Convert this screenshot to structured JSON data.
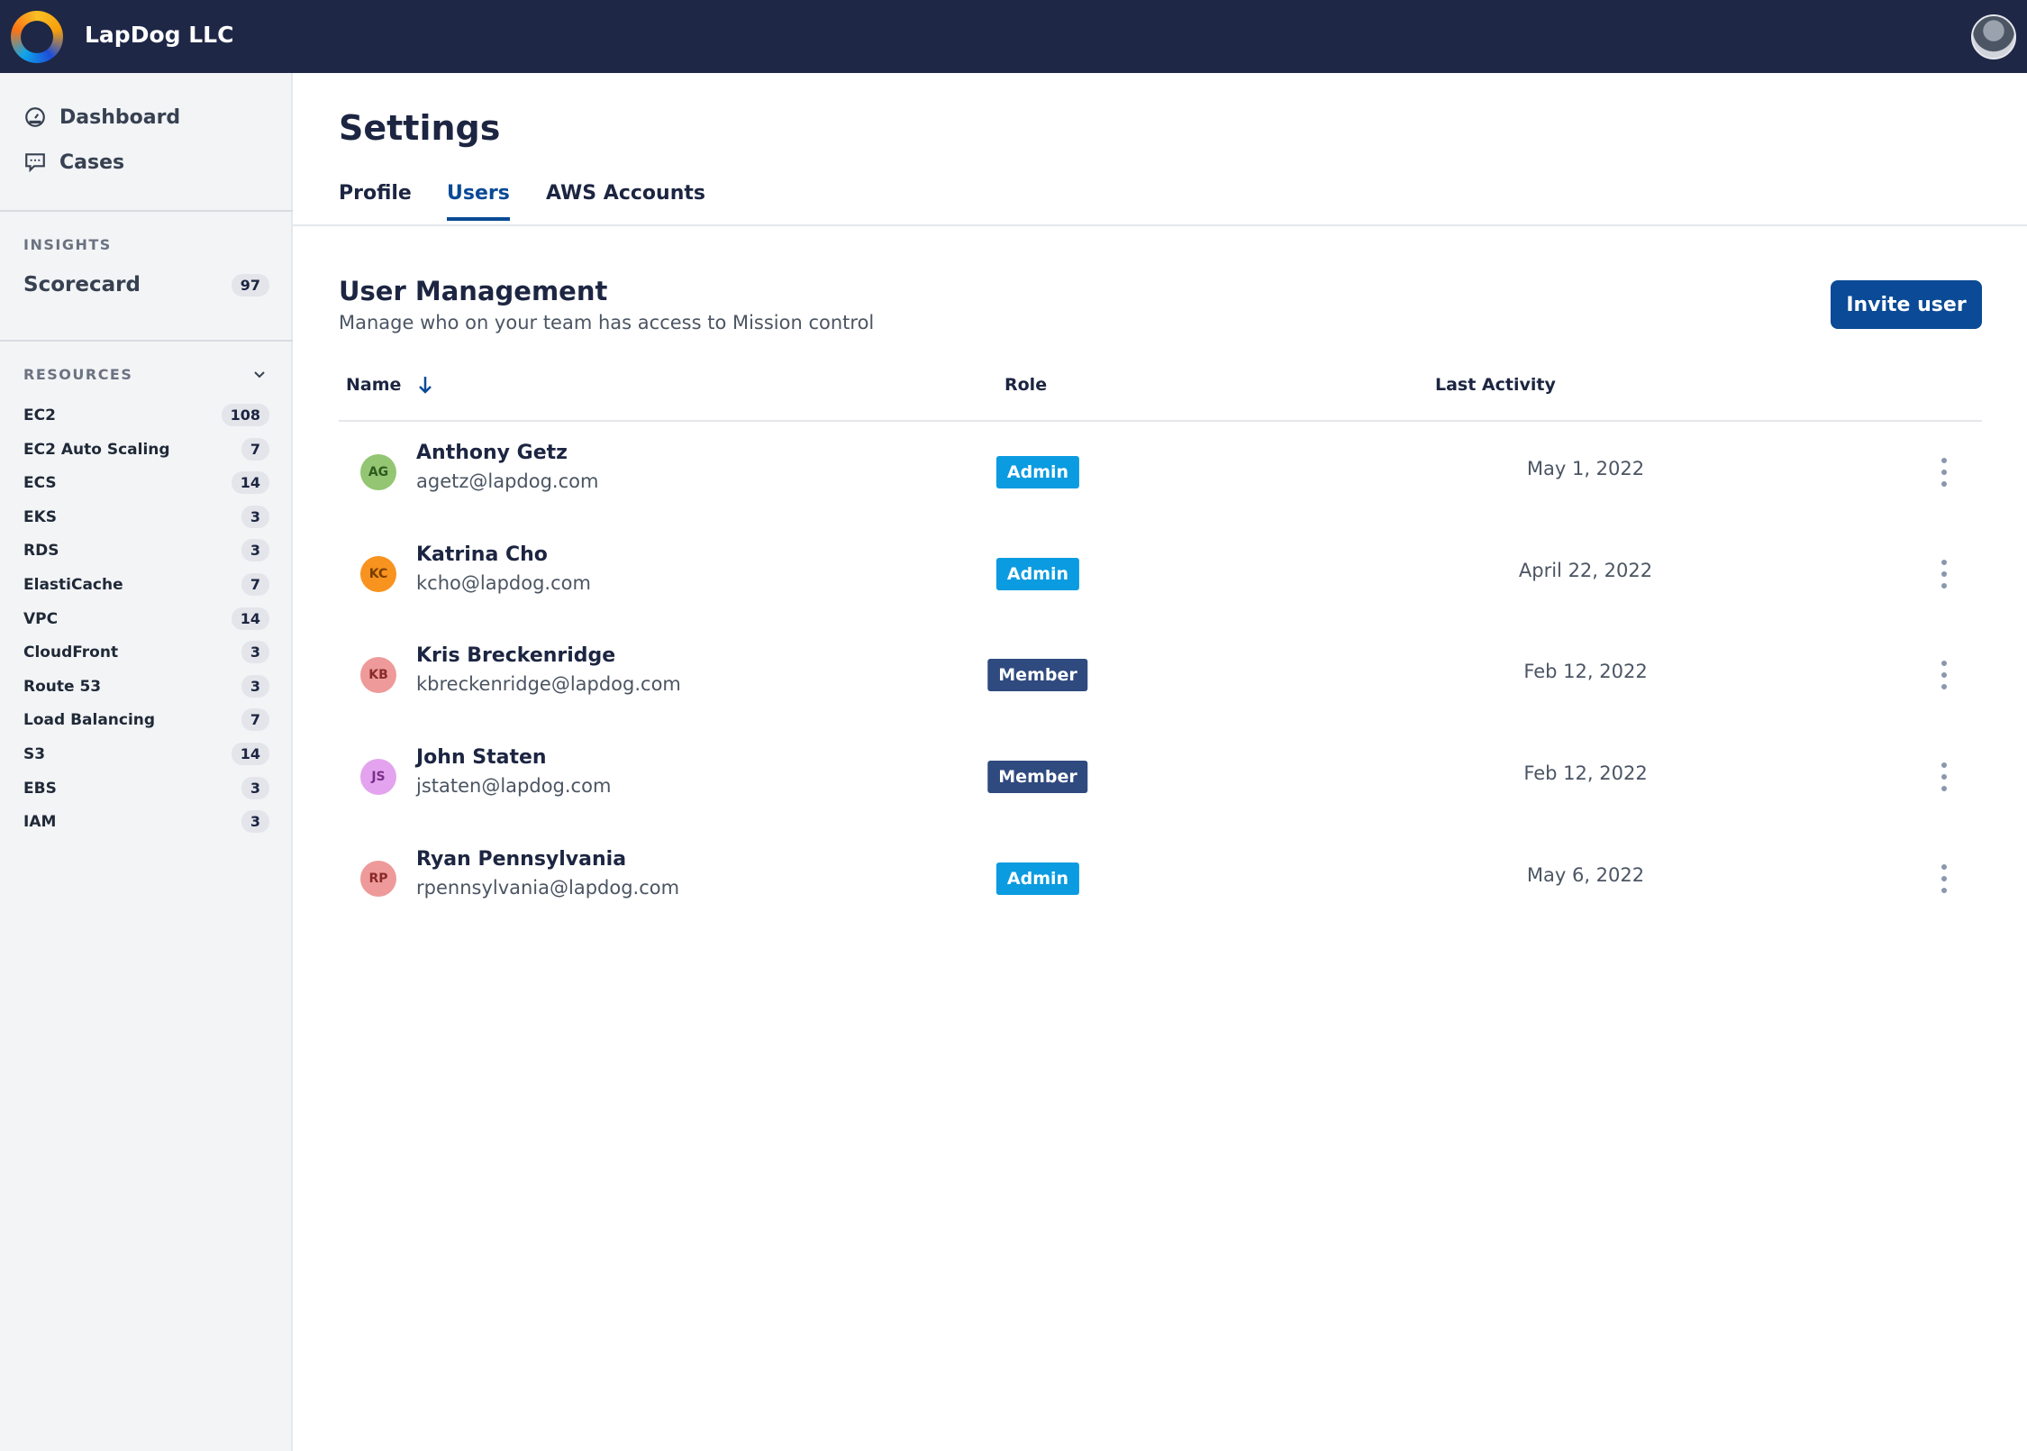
{
  "header": {
    "brand": "LapDog LLC"
  },
  "sidebar": {
    "nav": [
      {
        "label": "Dashboard",
        "icon": "dashboard-gauge-icon"
      },
      {
        "label": "Cases",
        "icon": "chat-bubble-icon"
      }
    ],
    "insights": {
      "title": "INSIGHTS",
      "items": [
        {
          "label": "Scorecard",
          "count": "97"
        }
      ]
    },
    "resources": {
      "title": "RESOURCES",
      "items": [
        {
          "label": "EC2",
          "count": "108"
        },
        {
          "label": "EC2 Auto Scaling",
          "count": "7"
        },
        {
          "label": "ECS",
          "count": "14"
        },
        {
          "label": "EKS",
          "count": "3"
        },
        {
          "label": "RDS",
          "count": "3"
        },
        {
          "label": "ElastiCache",
          "count": "7"
        },
        {
          "label": "VPC",
          "count": "14"
        },
        {
          "label": "CloudFront",
          "count": "3"
        },
        {
          "label": "Route 53",
          "count": "3"
        },
        {
          "label": "Load Balancing",
          "count": "7"
        },
        {
          "label": "S3",
          "count": "14"
        },
        {
          "label": "EBS",
          "count": "3"
        },
        {
          "label": "IAM",
          "count": "3"
        }
      ]
    }
  },
  "main": {
    "title": "Settings",
    "tabs": [
      {
        "label": "Profile"
      },
      {
        "label": "Users",
        "active": true
      },
      {
        "label": "AWS Accounts"
      }
    ],
    "section": {
      "title": "User Management",
      "subtitle": "Manage who on your team has access to Mission control",
      "invite_label": "Invite user"
    },
    "table": {
      "columns": [
        "Name",
        "Role",
        "Last Activity"
      ],
      "sort": "name-descending",
      "rows": [
        {
          "initials": "AG",
          "name": "Anthony Getz",
          "email": "agetz@lapdog.com",
          "role": "Admin",
          "last": "May 1, 2022",
          "color": "#93c572",
          "text": "#2f5a1e"
        },
        {
          "initials": "KC",
          "name": "Katrina Cho",
          "email": "kcho@lapdog.com",
          "role": "Admin",
          "last": "April 22, 2022",
          "color": "#f7931e",
          "text": "#7a3e00"
        },
        {
          "initials": "KB",
          "name": "Kris Breckenridge",
          "email": "kbreckenridge@lapdog.com",
          "role": "Member",
          "last": "Feb 12, 2022",
          "color": "#ee9a9a",
          "text": "#8a2a2a"
        },
        {
          "initials": "JS",
          "name": "John Staten",
          "email": "jstaten@lapdog.com",
          "role": "Member",
          "last": "Feb 12, 2022",
          "color": "#e3a3ee",
          "text": "#7a2e8a"
        },
        {
          "initials": "RP",
          "name": "Ryan Pennsylvania",
          "email": "rpennsylvania@lapdog.com",
          "role": "Admin",
          "last": "May 6, 2022",
          "color": "#ee9a9a",
          "text": "#8a2a2a"
        }
      ]
    }
  },
  "colors": {
    "topbar": "#1e2746",
    "primary": "#0a4a96",
    "admin": "#0b9be0",
    "member": "#2f4a7f"
  }
}
